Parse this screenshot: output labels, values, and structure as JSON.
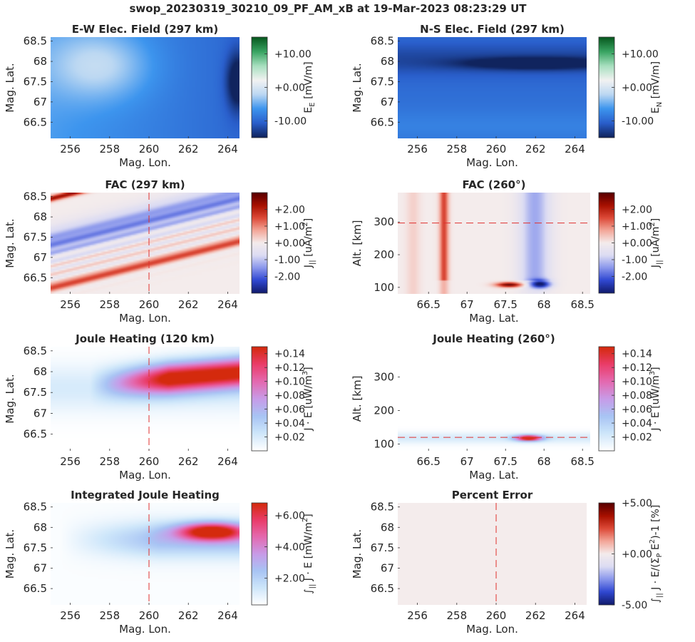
{
  "figure_title": "swop_20230319_30210_09_PF_AM_xB at 19-Mar-2023 08:23:29 UT",
  "colors": {
    "blue_white_green": [
      "#10245e",
      "#2a5fcc",
      "#3d95ee",
      "#bcd8f2",
      "#f2f2f2",
      "#a8e0c0",
      "#3aa563",
      "#085a20"
    ],
    "blue_white_red": [
      "#121c6e",
      "#3048d2",
      "#8a97ec",
      "#dcdcf3",
      "#f4ecec",
      "#f3a79a",
      "#dd4a38",
      "#a81000",
      "#5a0000"
    ],
    "white_purple_red": [
      "#ffffff",
      "#cde6fa",
      "#a8c4f4",
      "#c89be8",
      "#e46ab0",
      "#ea3d6a",
      "#d42a0d"
    ],
    "guide_line": "#e0302e"
  },
  "chart_data": [
    {
      "type": "heatmap",
      "title": "E-W Elec. Field (297 km)",
      "xlabel": "Mag. Lon.",
      "ylabel": "Mag. Lat.",
      "xlim": [
        255,
        264.6
      ],
      "ylim": [
        66.1,
        68.6
      ],
      "xticks": [
        "256",
        "258",
        "260",
        "262",
        "264"
      ],
      "xtick_values": [
        256,
        258,
        260,
        262,
        264
      ],
      "yticks": [
        "66.5",
        "67",
        "67.5",
        "68",
        "68.5"
      ],
      "ytick_values": [
        66.5,
        67,
        67.5,
        68,
        68.5
      ],
      "colorbar": {
        "label": "E",
        "label_sub": "E",
        "label_unit": "[mV/m]",
        "ticks": [
          "+10.00",
          "+0.00",
          "-10.00"
        ],
        "tick_values": [
          10,
          0,
          -10
        ],
        "range": [
          -15,
          15
        ],
        "colormap": "blue_white_green"
      },
      "field": "ew"
    },
    {
      "type": "heatmap",
      "title": "N-S Elec. Field (297 km)",
      "xlabel": "Mag. Lon.",
      "ylabel": "Mag. Lat.",
      "xlim": [
        255,
        264.6
      ],
      "ylim": [
        66.1,
        68.6
      ],
      "xticks": [
        "256",
        "258",
        "260",
        "262",
        "264"
      ],
      "xtick_values": [
        256,
        258,
        260,
        262,
        264
      ],
      "yticks": [
        "66.5",
        "67",
        "67.5",
        "68",
        "68.5"
      ],
      "ytick_values": [
        66.5,
        67,
        67.5,
        68,
        68.5
      ],
      "colorbar": {
        "label": "E",
        "label_sub": "N",
        "label_unit": "[mV/m]",
        "ticks": [
          "+10.00",
          "+0.00",
          "-10.00"
        ],
        "tick_values": [
          10,
          0,
          -10
        ],
        "range": [
          -15,
          15
        ],
        "colormap": "blue_white_green"
      },
      "field": "ns"
    },
    {
      "type": "heatmap",
      "title": "FAC (297 km)",
      "xlabel": "Mag. Lon.",
      "ylabel": "Mag. Lat.",
      "xlim": [
        255,
        264.6
      ],
      "ylim": [
        66.1,
        68.6
      ],
      "xticks": [
        "256",
        "258",
        "260",
        "262",
        "264"
      ],
      "xtick_values": [
        256,
        258,
        260,
        262,
        264
      ],
      "yticks": [
        "66.5",
        "67",
        "67.5",
        "68",
        "68.5"
      ],
      "ytick_values": [
        66.5,
        67,
        67.5,
        68,
        68.5
      ],
      "colorbar": {
        "label": "J",
        "label_sub": "||",
        "label_unit": "[uA/m",
        "label_sup": "2",
        "label_end": "]",
        "ticks": [
          "+2.00",
          "+1.00",
          "+0.00",
          "-1.00",
          "-2.00"
        ],
        "tick_values": [
          2,
          1,
          0,
          -1,
          -2
        ],
        "range": [
          -3,
          3
        ],
        "colormap": "blue_white_red"
      },
      "vline": {
        "axis": "x",
        "value": 260
      },
      "field": "fac"
    },
    {
      "type": "heatmap",
      "title": "FAC (260°)",
      "xlabel": "Mag. Lat.",
      "ylabel": "Alt. [km]",
      "xlim": [
        66.1,
        68.6
      ],
      "ylim": [
        80,
        390
      ],
      "xticks": [
        "66.5",
        "67",
        "67.5",
        "68",
        "68.5"
      ],
      "xtick_values": [
        66.5,
        67,
        67.5,
        68,
        68.5
      ],
      "yticks": [
        "100",
        "200",
        "300"
      ],
      "ytick_values": [
        100,
        200,
        300
      ],
      "colorbar": {
        "label": "J",
        "label_sub": "||",
        "label_unit": "[uA/m",
        "label_sup": "2",
        "label_end": "]",
        "ticks": [
          "+2.00",
          "+1.00",
          "+0.00",
          "-1.00",
          "-2.00"
        ],
        "tick_values": [
          2,
          1,
          0,
          -1,
          -2
        ],
        "range": [
          -3,
          3
        ],
        "colormap": "blue_white_red"
      },
      "hline": {
        "axis": "y",
        "value": 297
      },
      "field": "fac_alt"
    },
    {
      "type": "heatmap",
      "title": "Joule Heating (120 km)",
      "xlabel": "Mag. Lon.",
      "ylabel": "Mag. Lat.",
      "xlim": [
        255,
        264.6
      ],
      "ylim": [
        66.1,
        68.6
      ],
      "xticks": [
        "256",
        "258",
        "260",
        "262",
        "264"
      ],
      "xtick_values": [
        256,
        258,
        260,
        262,
        264
      ],
      "yticks": [
        "66.5",
        "67",
        "67.5",
        "68",
        "68.5"
      ],
      "ytick_values": [
        66.5,
        67,
        67.5,
        68,
        68.5
      ],
      "colorbar": {
        "label": "J · E",
        "label_unit": "[uW/m",
        "label_sup": "3",
        "label_end": "]",
        "ticks": [
          "+0.14",
          "+0.12",
          "+0.10",
          "+0.08",
          "+0.06",
          "+0.04",
          "+0.02"
        ],
        "tick_values": [
          0.14,
          0.12,
          0.1,
          0.08,
          0.06,
          0.04,
          0.02
        ],
        "range": [
          0,
          0.15
        ],
        "colormap": "white_purple_red"
      },
      "vline": {
        "axis": "x",
        "value": 260
      },
      "field": "jh"
    },
    {
      "type": "heatmap",
      "title": "Joule Heating (260°)",
      "xlabel": "Mag. Lat.",
      "ylabel": "Alt. [km]",
      "xlim": [
        66.1,
        68.6
      ],
      "ylim": [
        80,
        390
      ],
      "xticks": [
        "66.5",
        "67",
        "67.5",
        "68",
        "68.5"
      ],
      "xtick_values": [
        66.5,
        67,
        67.5,
        68,
        68.5
      ],
      "yticks": [
        "100",
        "200",
        "300"
      ],
      "ytick_values": [
        100,
        200,
        300
      ],
      "colorbar": {
        "label": "J · E",
        "label_unit": "[uW/m",
        "label_sup": "3",
        "label_end": "]",
        "ticks": [
          "+0.14",
          "+0.12",
          "+0.10",
          "+0.08",
          "+0.06",
          "+0.04",
          "+0.02"
        ],
        "tick_values": [
          0.14,
          0.12,
          0.1,
          0.08,
          0.06,
          0.04,
          0.02
        ],
        "range": [
          0,
          0.15
        ],
        "colormap": "white_purple_red"
      },
      "hline": {
        "axis": "y",
        "value": 120
      },
      "field": "jh_alt"
    },
    {
      "type": "heatmap",
      "title": "Integrated Joule Heating",
      "xlabel": "Mag. Lon.",
      "ylabel": "Mag. Lat.",
      "xlim": [
        255,
        264.6
      ],
      "ylim": [
        66.1,
        68.6
      ],
      "xticks": [
        "256",
        "258",
        "260",
        "262",
        "264"
      ],
      "xtick_values": [
        256,
        258,
        260,
        262,
        264
      ],
      "yticks": [
        "66.5",
        "67",
        "67.5",
        "68",
        "68.5"
      ],
      "ytick_values": [
        66.5,
        67,
        67.5,
        68,
        68.5
      ],
      "colorbar": {
        "label": "∫",
        "label_sub": "||",
        "label_mid": " J · E [mW/m",
        "label_sup": "2",
        "label_end": "]",
        "ticks": [
          "+6.00",
          "+4.00",
          "+2.00"
        ],
        "tick_values": [
          6,
          4,
          2
        ],
        "range": [
          0.3,
          6.8
        ],
        "colormap": "white_purple_red"
      },
      "vline": {
        "axis": "x",
        "value": 260
      },
      "field": "ijh"
    },
    {
      "type": "heatmap",
      "title": "Percent Error",
      "xlabel": "Mag. Lon.",
      "ylabel": "Mag. Lat.",
      "xlim": [
        255,
        264.6
      ],
      "ylim": [
        66.1,
        68.6
      ],
      "xticks": [
        "256",
        "258",
        "260",
        "262",
        "264"
      ],
      "xtick_values": [
        256,
        258,
        260,
        262,
        264
      ],
      "yticks": [
        "66.5",
        "67",
        "67.5",
        "68",
        "68.5"
      ],
      "ytick_values": [
        66.5,
        67,
        67.5,
        68,
        68.5
      ],
      "colorbar": {
        "label": "∫",
        "label_sub": "||",
        "label_mid": " J · E/(Σ",
        "label_sub2": "P",
        "label_mid2": " E",
        "label_sup": "2",
        "label_end": ")-1 [%]",
        "ticks": [
          "+5.00",
          "+0.00",
          "-5.00"
        ],
        "tick_values": [
          5,
          0,
          -5
        ],
        "range": [
          -5,
          5
        ],
        "colormap": "blue_white_red"
      },
      "vline": {
        "axis": "x",
        "value": 260
      },
      "field": "err"
    }
  ]
}
